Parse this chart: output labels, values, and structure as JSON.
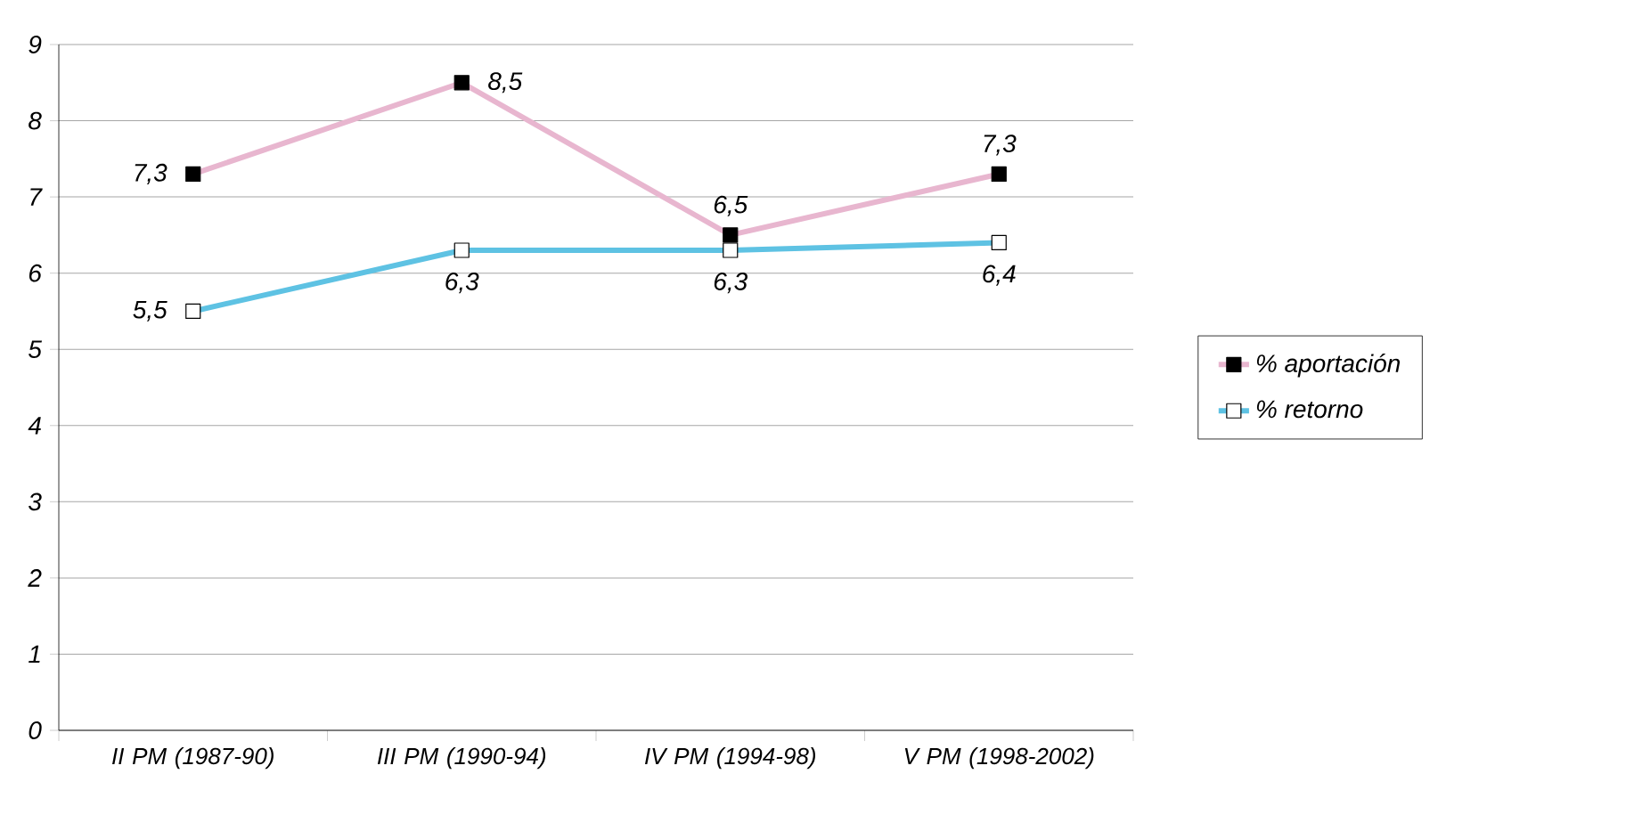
{
  "chart_data": {
    "type": "line",
    "categories": [
      "II PM (1987-90)",
      "III PM (1990-94)",
      "IV PM (1994-98)",
      "V PM (1998-2002)"
    ],
    "series": [
      {
        "name": "% aportación",
        "color": "#e8b6cf",
        "values": [
          7.3,
          8.5,
          6.5,
          7.3
        ],
        "value_labels": [
          "7,3",
          "8,5",
          "6,5",
          "7,3"
        ]
      },
      {
        "name": "% retorno",
        "color": "#5ec2e3",
        "values": [
          5.5,
          6.3,
          6.3,
          6.4
        ],
        "value_labels": [
          "5,5",
          "6,3",
          "6,3",
          "6,4"
        ]
      }
    ],
    "ylim": [
      0,
      9
    ],
    "yticks": [
      0,
      1,
      2,
      3,
      4,
      5,
      6,
      7,
      8,
      9
    ],
    "grid": "y",
    "legend": "right",
    "marker": "square",
    "line_style": "solid"
  }
}
